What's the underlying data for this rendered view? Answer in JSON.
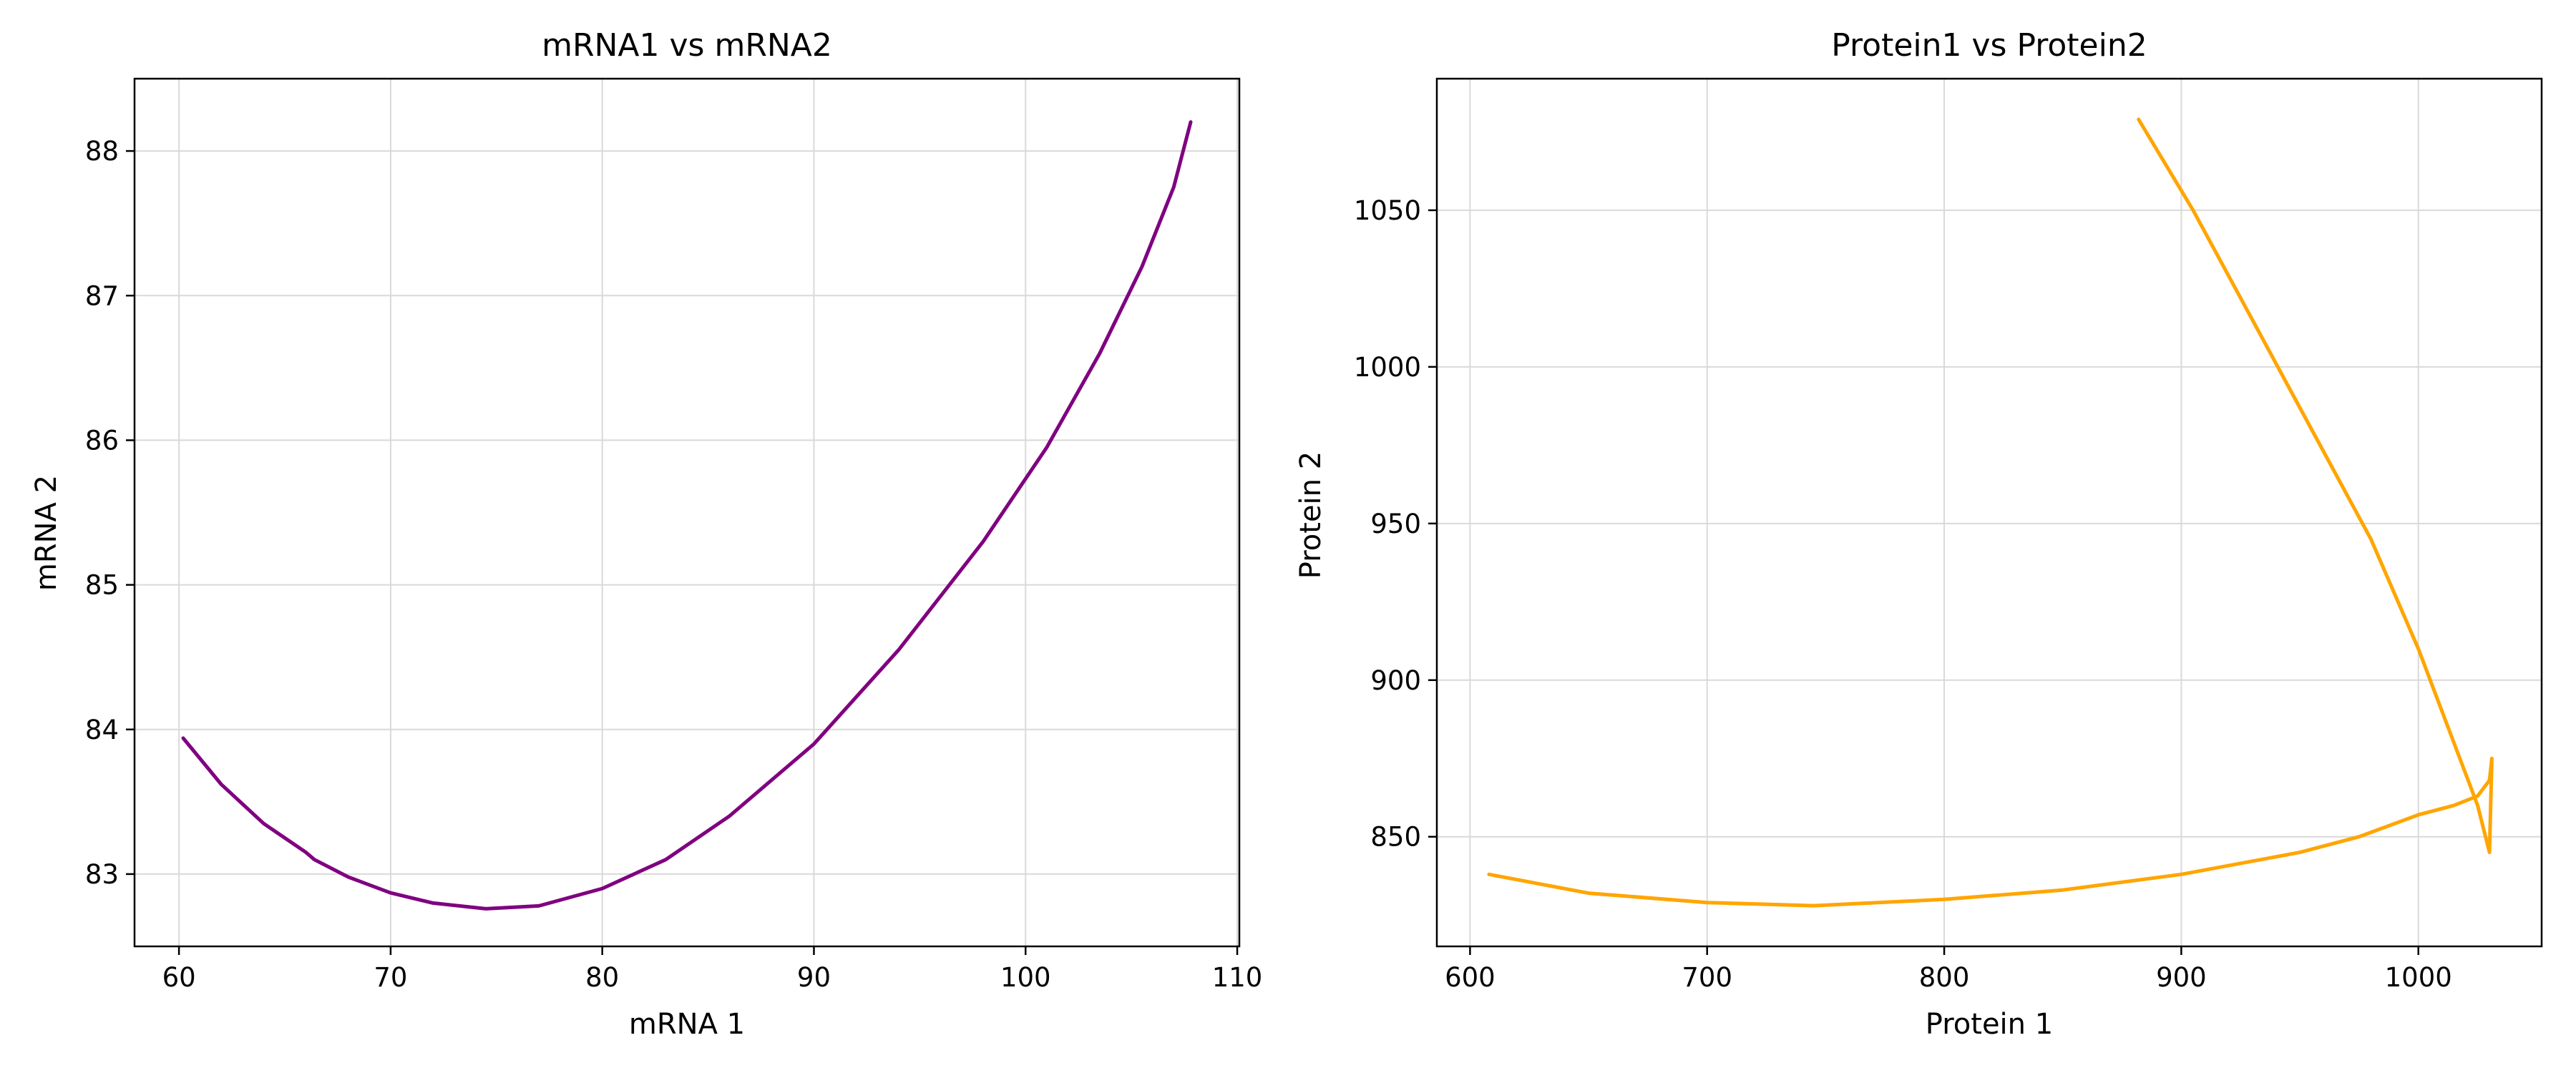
{
  "chart_data": [
    {
      "type": "line",
      "title": "mRNA1 vs mRNA2",
      "xlabel": "mRNA 1",
      "ylabel": "mRNA 2",
      "xlim": [
        57.9,
        110.1
      ],
      "ylim": [
        82.5,
        88.5
      ],
      "xticks": [
        60,
        70,
        80,
        90,
        100,
        110
      ],
      "yticks": [
        83,
        84,
        85,
        86,
        87,
        88
      ],
      "grid": true,
      "color": "#800080",
      "x": [
        60.2,
        62.0,
        64.0,
        66.0,
        66.4,
        68.0,
        70.0,
        72.0,
        74.5,
        77.0,
        80.0,
        83.0,
        86.0,
        90.0,
        94.0,
        98.0,
        101.0,
        103.5,
        105.5,
        107.0,
        107.8
      ],
      "y": [
        83.94,
        83.62,
        83.35,
        83.15,
        83.1,
        82.98,
        82.87,
        82.8,
        82.76,
        82.78,
        82.9,
        83.1,
        83.4,
        83.9,
        84.55,
        85.3,
        85.95,
        86.6,
        87.2,
        87.75,
        88.2
      ]
    },
    {
      "type": "line",
      "title": "Protein1 vs Protein2",
      "xlabel": "Protein 1",
      "ylabel": "Protein 2",
      "xlim": [
        586.0,
        1052.0
      ],
      "ylim": [
        815.0,
        1092.0
      ],
      "xticks": [
        600,
        700,
        800,
        900,
        1000
      ],
      "yticks": [
        850,
        900,
        950,
        1000,
        1050
      ],
      "grid": true,
      "color": "#ffa500",
      "x": [
        882,
        905,
        930,
        955,
        980,
        1000,
        1015,
        1025,
        1030,
        1031,
        1030,
        1025,
        1015,
        1000,
        975,
        950,
        900,
        850,
        800,
        745,
        700,
        650,
        608
      ],
      "y": [
        1079,
        1050,
        1015,
        980,
        945,
        910,
        880,
        860,
        845,
        875,
        868,
        863,
        860,
        857,
        850,
        845,
        838,
        833,
        830,
        828,
        829,
        832,
        838
      ]
    }
  ]
}
